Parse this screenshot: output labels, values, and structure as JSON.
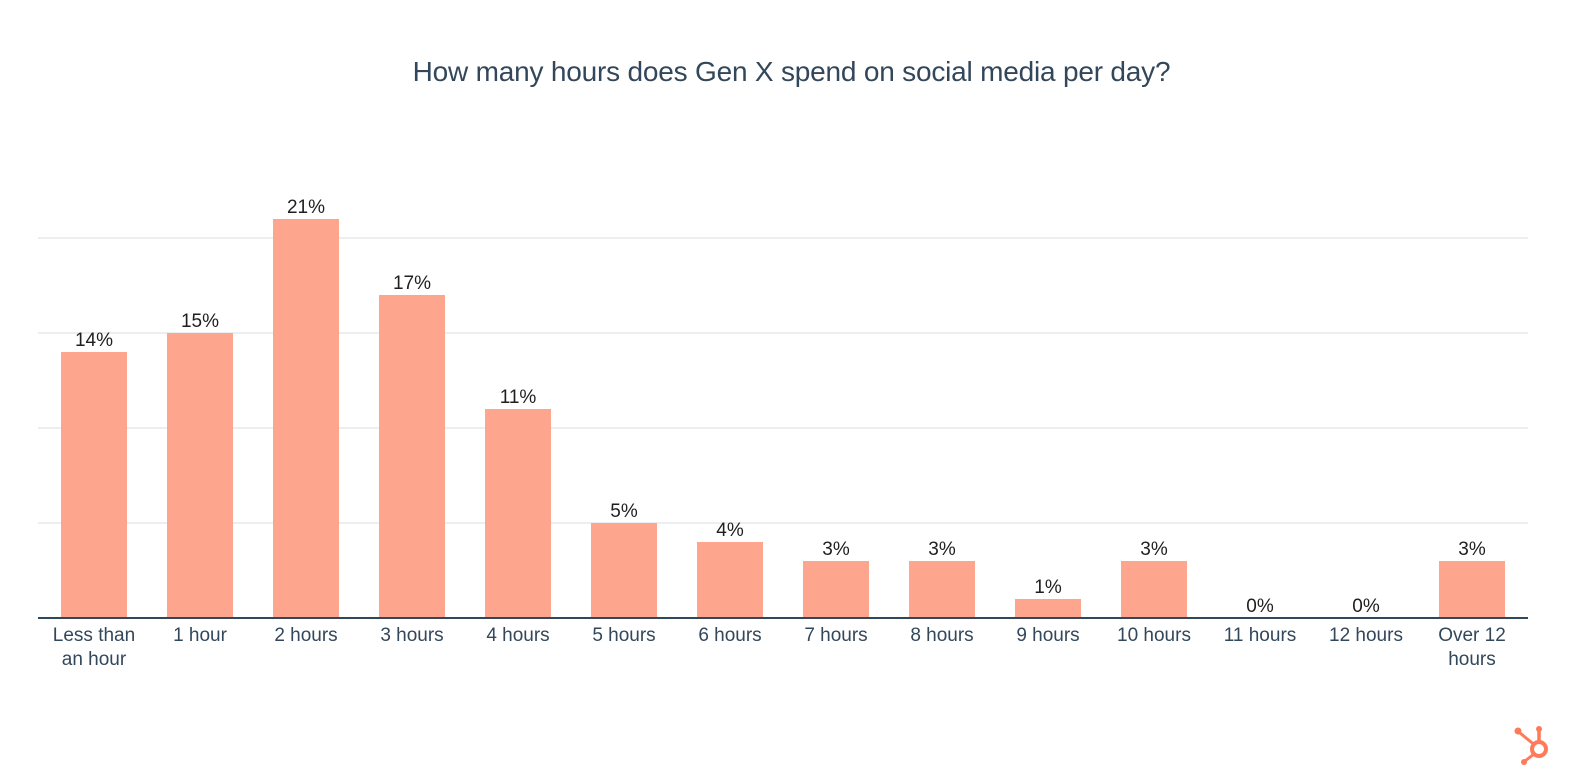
{
  "chart_data": {
    "type": "bar",
    "title": "How many hours does Gen X spend on social media per day?",
    "xlabel": "",
    "ylabel": "",
    "categories": [
      "Less than an hour",
      "1 hour",
      "2 hours",
      "3 hours",
      "4 hours",
      "5 hours",
      "6 hours",
      "7 hours",
      "8 hours",
      "9 hours",
      "10 hours",
      "11 hours",
      "12 hours",
      "Over 12 hours"
    ],
    "category_lines": [
      [
        "Less than",
        "an hour"
      ],
      [
        "1 hour"
      ],
      [
        "2 hours"
      ],
      [
        "3 hours"
      ],
      [
        "4 hours"
      ],
      [
        "5 hours"
      ],
      [
        "6 hours"
      ],
      [
        "7 hours"
      ],
      [
        "8 hours"
      ],
      [
        "9 hours"
      ],
      [
        "10 hours"
      ],
      [
        "11 hours"
      ],
      [
        "12 hours"
      ],
      [
        "Over 12",
        "hours"
      ]
    ],
    "values": [
      14,
      15,
      21,
      17,
      11,
      5,
      4,
      3,
      3,
      1,
      3,
      0,
      0,
      3
    ],
    "value_labels": [
      "14%",
      "15%",
      "21%",
      "17%",
      "11%",
      "5%",
      "4%",
      "3%",
      "3%",
      "1%",
      "3%",
      "0%",
      "0%",
      "3%"
    ],
    "unit": "%",
    "ylim": [
      0,
      20
    ],
    "gridlines": [
      5,
      10,
      15,
      20
    ],
    "grid": true,
    "legend": "none",
    "colors": {
      "bar": "#fea58e",
      "title": "#33475b",
      "axis": "#33475b",
      "grid": "#d9dde3",
      "logo": "#ff7a59"
    }
  },
  "branding": {
    "logo_icon": "hubspot-sprocket-icon"
  }
}
